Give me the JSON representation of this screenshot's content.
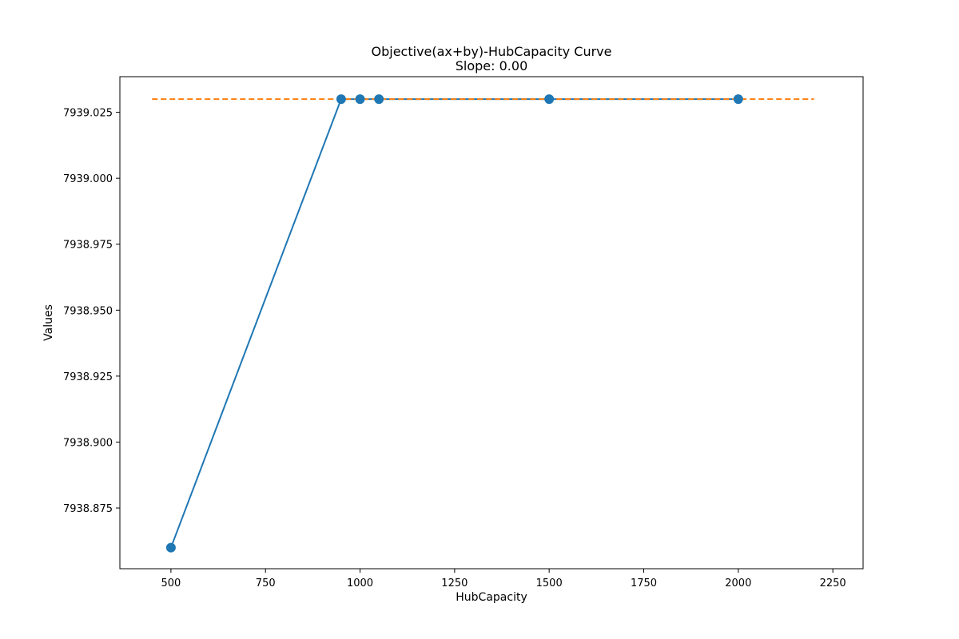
{
  "chart_data": {
    "type": "line",
    "title": "Objective(ax+by)-HubCapacity Curve",
    "subtitle": "Slope: 0.00",
    "xlabel": "HubCapacity",
    "ylabel": "Values",
    "xlim": [
      365,
      2330
    ],
    "ylim": [
      7938.852,
      7939.0385
    ],
    "xticks": [
      500,
      750,
      1000,
      1250,
      1500,
      1750,
      2000,
      2250
    ],
    "yticks": [
      7938.875,
      7938.9,
      7938.925,
      7938.95,
      7938.975,
      7939.0,
      7939.025
    ],
    "ytick_labels": [
      "7938.875",
      "7938.900",
      "7938.925",
      "7938.950",
      "7938.975",
      "7939.000",
      "7939.025"
    ],
    "grid": false,
    "series": [
      {
        "x": [
          500,
          950,
          1000,
          1050,
          1500,
          2000
        ],
        "y": [
          7938.86,
          7939.03,
          7939.03,
          7939.03,
          7939.03,
          7939.03
        ],
        "color": "#1f77b4",
        "style": "solid",
        "markers": true
      },
      {
        "x": [
          450,
          2200
        ],
        "y": [
          7939.03,
          7939.03
        ],
        "color": "#ff7f0e",
        "style": "dashed",
        "markers": false
      }
    ]
  }
}
